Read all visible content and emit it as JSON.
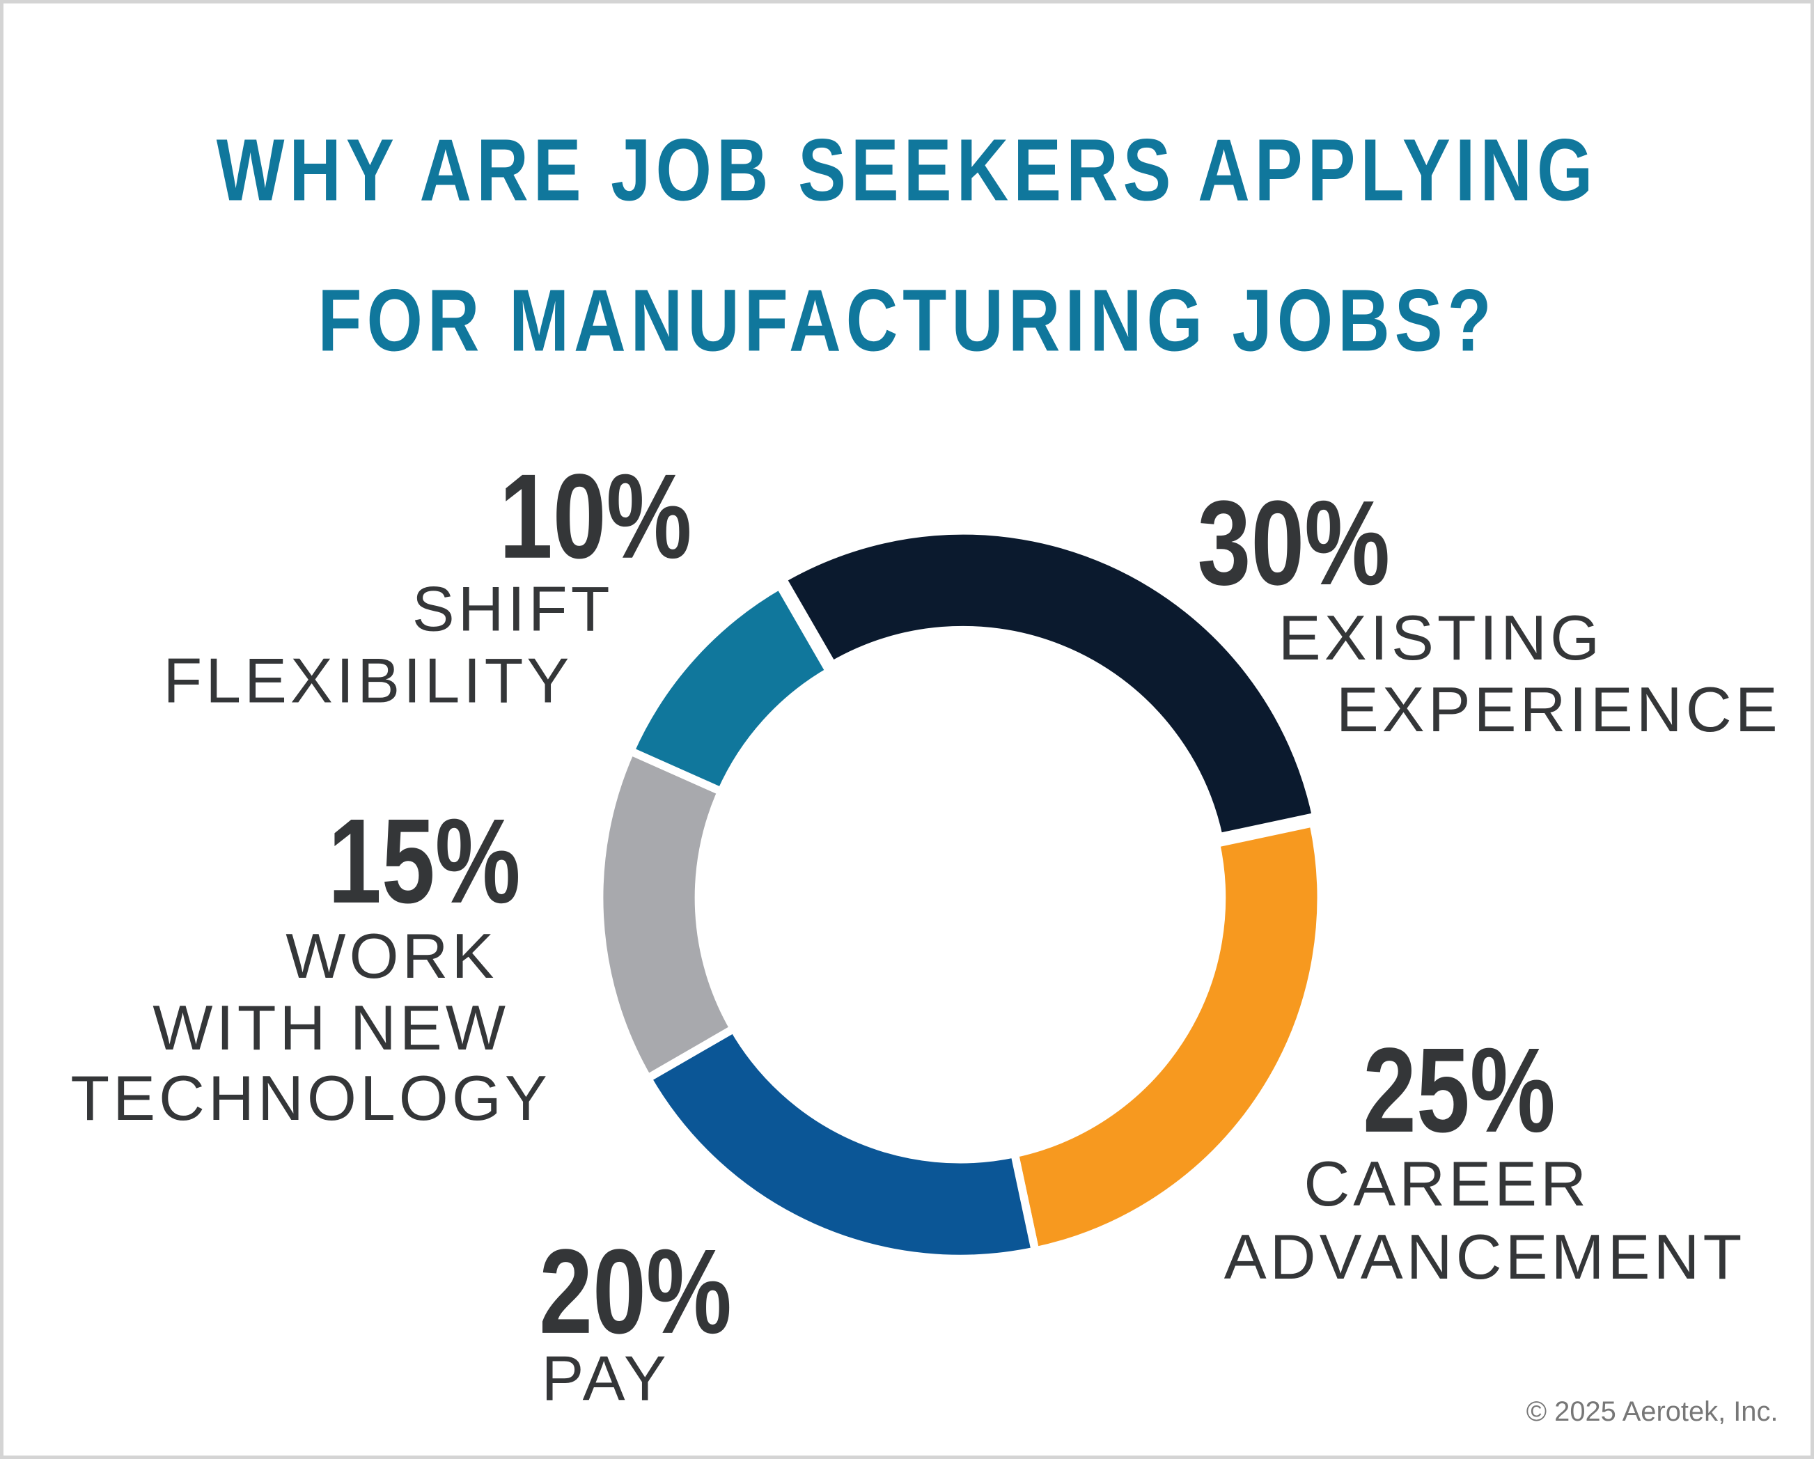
{
  "chart_data": {
    "type": "pie",
    "title": [
      "WHY ARE JOB SEEKERS APPLYING",
      "FOR MANUFACTURING JOBS?"
    ],
    "categories": [
      [
        "EXISTING",
        "EXPERIENCE"
      ],
      [
        "CAREER",
        "ADVANCEMENT"
      ],
      [
        "PAY"
      ],
      [
        "WORK",
        "WITH NEW",
        "TECHNOLOGY"
      ],
      [
        "SHIFT",
        "FLEXIBILITY"
      ]
    ],
    "values": [
      30,
      25,
      20,
      15,
      10
    ],
    "value_labels": [
      "30%",
      "25%",
      "20%",
      "15%",
      "10%"
    ],
    "colors": [
      "#0b1a2e",
      "#f7991f",
      "#0b5696",
      "#a8a9ad",
      "#10779c"
    ],
    "donut": true,
    "source": "© 2025 Aerotek, Inc."
  }
}
